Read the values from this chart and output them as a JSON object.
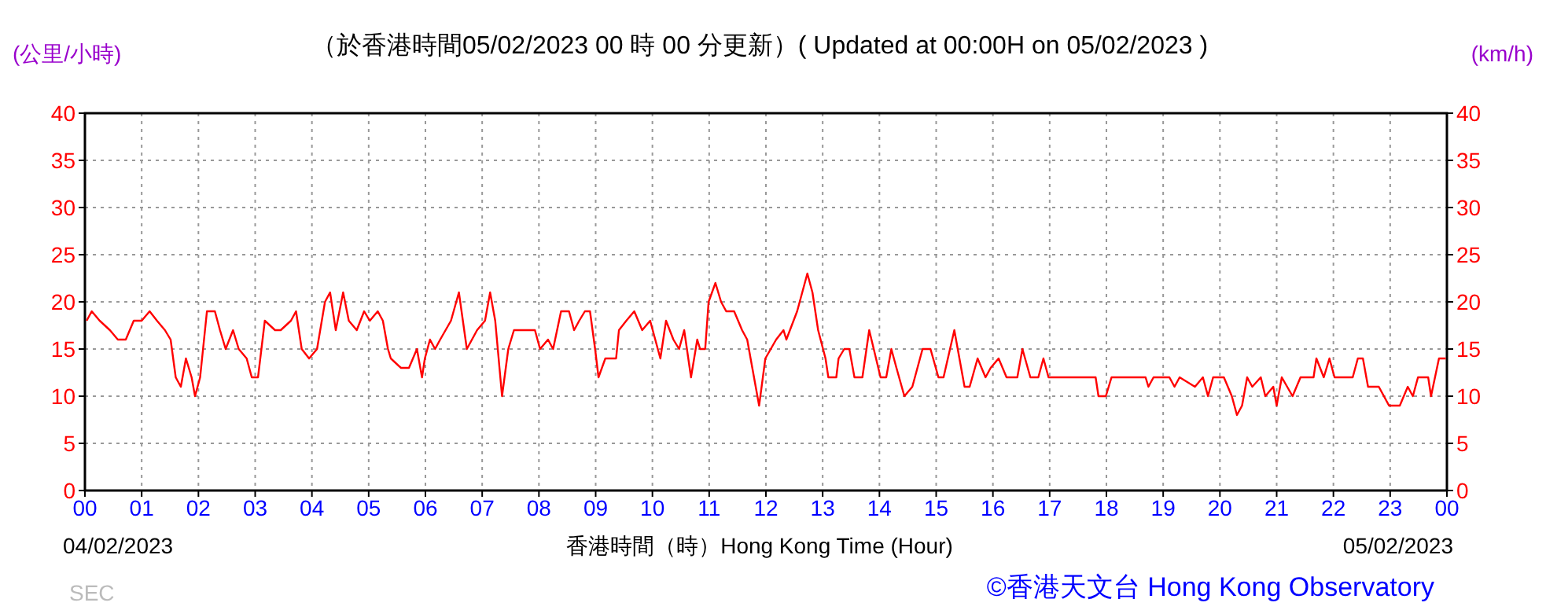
{
  "chart_data": {
    "type": "line",
    "title": "（於香港時間05/02/2023 00 時 00 分更新）( Updated at 00:00H on 05/02/2023 )",
    "xlabel": "香港時間（時）Hong Kong Time (Hour)",
    "ylabel": "(公里/小時)",
    "y2label": "(km/h)",
    "annotations": [
      "04/02/2023",
      "05/02/2023",
      "SEC",
      "©香港天文台 Hong Kong Observatory"
    ],
    "xlim": [
      0,
      24
    ],
    "xticks": [
      {
        "value": 0,
        "label": "00"
      },
      {
        "value": 1,
        "label": "01"
      },
      {
        "value": 2,
        "label": "02"
      },
      {
        "value": 3,
        "label": "03"
      },
      {
        "value": 4,
        "label": "04"
      },
      {
        "value": 5,
        "label": "05"
      },
      {
        "value": 6,
        "label": "06"
      },
      {
        "value": 7,
        "label": "07"
      },
      {
        "value": 8,
        "label": "08"
      },
      {
        "value": 9,
        "label": "09"
      },
      {
        "value": 10,
        "label": "10"
      },
      {
        "value": 11,
        "label": "11"
      },
      {
        "value": 12,
        "label": "12"
      },
      {
        "value": 13,
        "label": "13"
      },
      {
        "value": 14,
        "label": "14"
      },
      {
        "value": 15,
        "label": "15"
      },
      {
        "value": 16,
        "label": "16"
      },
      {
        "value": 17,
        "label": "17"
      },
      {
        "value": 18,
        "label": "18"
      },
      {
        "value": 19,
        "label": "19"
      },
      {
        "value": 20,
        "label": "20"
      },
      {
        "value": 21,
        "label": "21"
      },
      {
        "value": 22,
        "label": "22"
      },
      {
        "value": 23,
        "label": "23"
      },
      {
        "value": 24,
        "label": "00"
      }
    ],
    "ylim": [
      0,
      40
    ],
    "yticks": [
      0,
      5,
      10,
      15,
      20,
      25,
      30,
      35,
      40
    ],
    "y2lim": [
      0,
      40
    ],
    "y2ticks": [
      0,
      5,
      10,
      15,
      20,
      25,
      30,
      35,
      40
    ],
    "grid": true,
    "x": [
      0.03,
      0.12,
      0.26,
      0.44,
      0.58,
      0.72,
      0.86,
      1.0,
      1.14,
      1.27,
      1.41,
      1.51,
      1.6,
      1.69,
      1.78,
      1.88,
      1.94,
      2.03,
      2.15,
      2.29,
      2.38,
      2.48,
      2.61,
      2.71,
      2.85,
      2.94,
      3.05,
      3.17,
      3.35,
      3.45,
      3.63,
      3.72,
      3.82,
      3.95,
      4.09,
      4.23,
      4.32,
      4.42,
      4.55,
      4.65,
      4.79,
      4.92,
      5.02,
      5.16,
      5.25,
      5.34,
      5.39,
      5.57,
      5.71,
      5.85,
      5.94,
      5.99,
      6.08,
      6.17,
      6.26,
      6.45,
      6.59,
      6.73,
      6.91,
      7.05,
      7.14,
      7.23,
      7.35,
      7.46,
      7.56,
      7.74,
      7.93,
      8.02,
      8.16,
      8.25,
      8.39,
      8.53,
      8.62,
      8.71,
      8.81,
      8.9,
      8.99,
      9.05,
      9.17,
      9.36,
      9.41,
      9.54,
      9.68,
      9.82,
      9.96,
      10.05,
      10.14,
      10.24,
      10.37,
      10.47,
      10.56,
      10.68,
      10.79,
      10.84,
      10.93,
      10.99,
      11.11,
      11.21,
      11.3,
      11.44,
      11.58,
      11.67,
      11.76,
      11.88,
      11.99,
      12.18,
      12.31,
      12.36,
      12.55,
      12.73,
      12.82,
      12.92,
      13.05,
      13.1,
      13.24,
      13.28,
      13.38,
      13.47,
      13.56,
      13.7,
      13.82,
      13.94,
      14.02,
      14.12,
      14.21,
      14.3,
      14.44,
      14.58,
      14.76,
      14.9,
      15.04,
      15.13,
      15.32,
      15.5,
      15.59,
      15.73,
      15.87,
      15.96,
      16.1,
      16.24,
      16.43,
      16.52,
      16.66,
      16.8,
      16.89,
      16.98,
      17.07,
      17.81,
      17.86,
      17.99,
      18.09,
      18.69,
      18.74,
      18.83,
      19.11,
      19.2,
      19.29,
      19.56,
      19.7,
      19.79,
      19.88,
      20.07,
      20.21,
      20.3,
      20.39,
      20.48,
      20.57,
      20.72,
      20.8,
      20.94,
      21.0,
      21.09,
      21.28,
      21.42,
      21.65,
      21.7,
      21.83,
      21.93,
      22.02,
      22.34,
      22.43,
      22.52,
      22.61,
      22.8,
      22.98,
      23.17,
      23.31,
      23.4,
      23.49,
      23.67,
      23.72,
      23.86,
      23.98
    ],
    "series": [
      {
        "color": "#ff0000",
        "values": [
          18,
          19,
          18,
          17,
          16,
          16,
          18,
          18,
          19,
          18,
          17,
          16,
          12,
          11,
          14,
          12,
          10,
          12,
          19,
          19,
          17,
          15,
          17,
          15,
          14,
          12,
          12,
          18,
          17,
          17,
          18,
          19,
          15,
          14,
          15,
          20,
          21,
          17,
          21,
          18,
          17,
          19,
          18,
          19,
          18,
          15,
          14,
          13,
          13,
          15,
          12,
          14,
          16,
          15,
          16,
          18,
          21,
          15,
          17,
          18,
          21,
          18,
          10,
          15,
          17,
          17,
          17,
          15,
          16,
          15,
          19,
          19,
          17,
          18,
          19,
          19,
          15,
          12,
          14,
          14,
          17,
          18,
          19,
          17,
          18,
          16,
          14,
          18,
          16,
          15,
          17,
          12,
          16,
          15,
          15,
          20,
          22,
          20,
          19,
          19,
          17,
          16,
          13,
          9,
          14,
          16,
          17,
          16,
          19,
          23,
          21,
          17,
          14,
          12,
          12,
          14,
          15,
          15,
          12,
          12,
          17,
          14,
          12,
          12,
          15,
          13,
          10,
          11,
          15,
          15,
          12,
          12,
          17,
          11,
          11,
          14,
          12,
          13,
          14,
          12,
          12,
          15,
          12,
          12,
          14,
          12,
          12,
          12,
          10,
          10,
          12,
          12,
          11,
          12,
          12,
          11,
          12,
          11,
          12,
          10,
          12,
          12,
          10,
          8,
          9,
          12,
          11,
          12,
          10,
          11,
          9,
          12,
          10,
          12,
          12,
          14,
          12,
          14,
          12,
          12,
          14,
          14,
          11,
          11,
          9,
          9,
          11,
          10,
          12,
          12,
          10,
          14,
          14
        ]
      }
    ]
  }
}
